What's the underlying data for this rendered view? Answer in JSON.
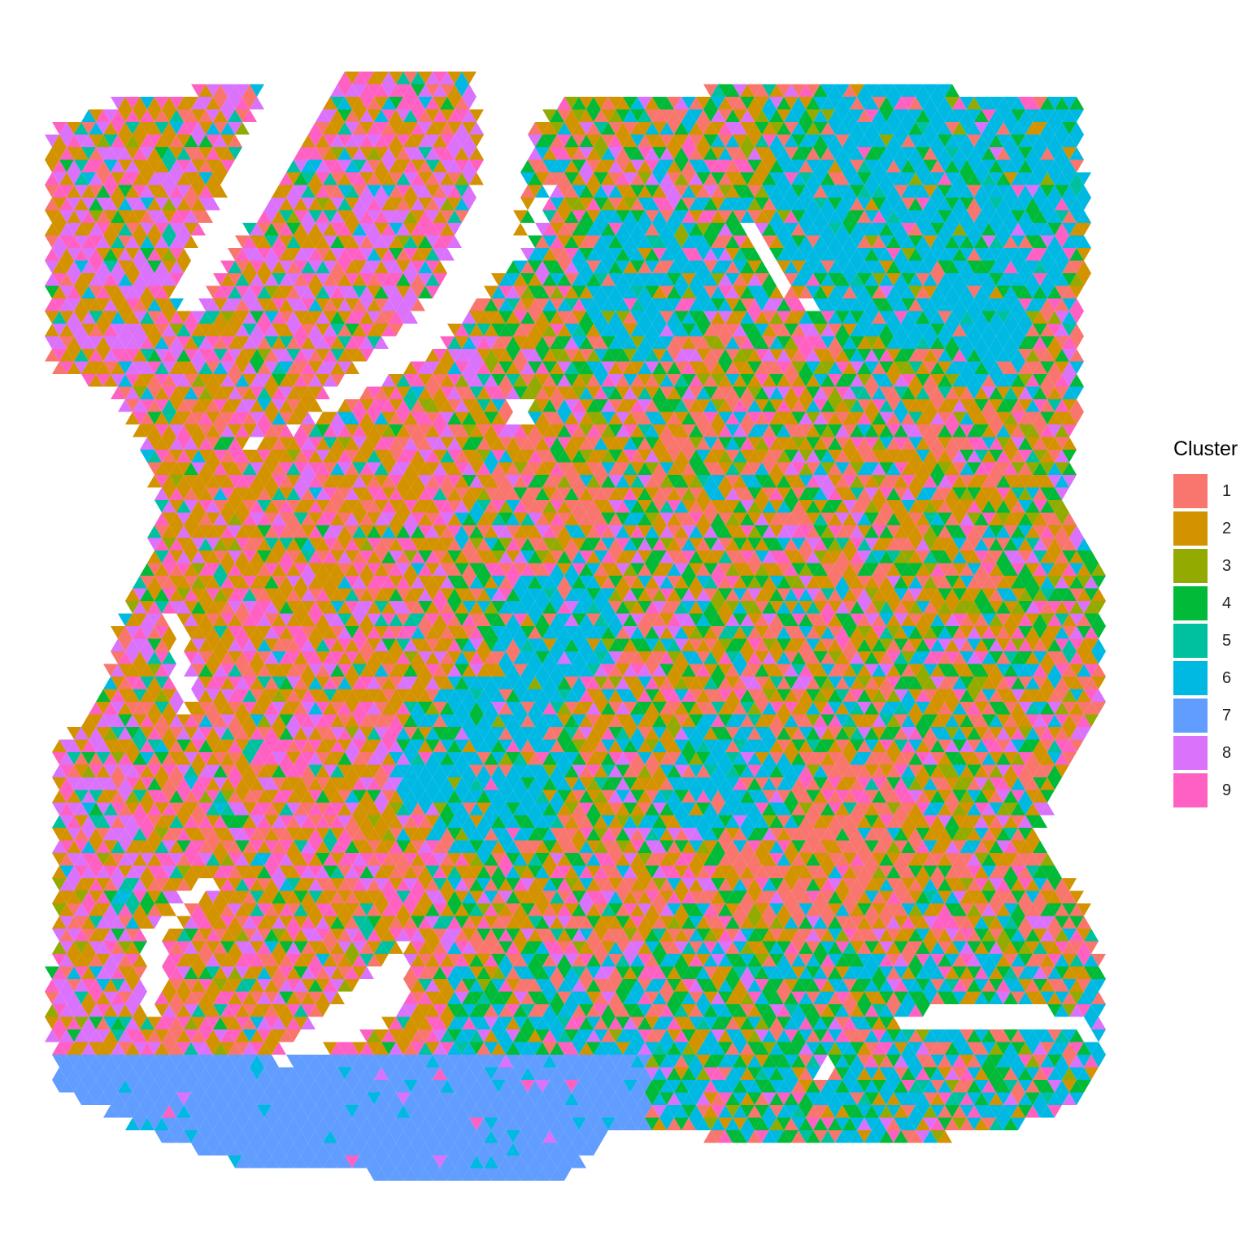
{
  "chart_data": {
    "type": "heatmap",
    "title": "",
    "xlabel": "",
    "ylabel": "",
    "grid": false,
    "legend": {
      "title": "Cluster",
      "placement": "right",
      "entries": [
        {
          "label": "1",
          "color": "#F8766D"
        },
        {
          "label": "2",
          "color": "#D39200"
        },
        {
          "label": "3",
          "color": "#93AA00"
        },
        {
          "label": "4",
          "color": "#00BA38"
        },
        {
          "label": "5",
          "color": "#00C19F"
        },
        {
          "label": "6",
          "color": "#00B9E3"
        },
        {
          "label": "7",
          "color": "#619CFF"
        },
        {
          "label": "8",
          "color": "#DB72FB"
        },
        {
          "label": "9",
          "color": "#FF61C3"
        }
      ]
    }
  }
}
